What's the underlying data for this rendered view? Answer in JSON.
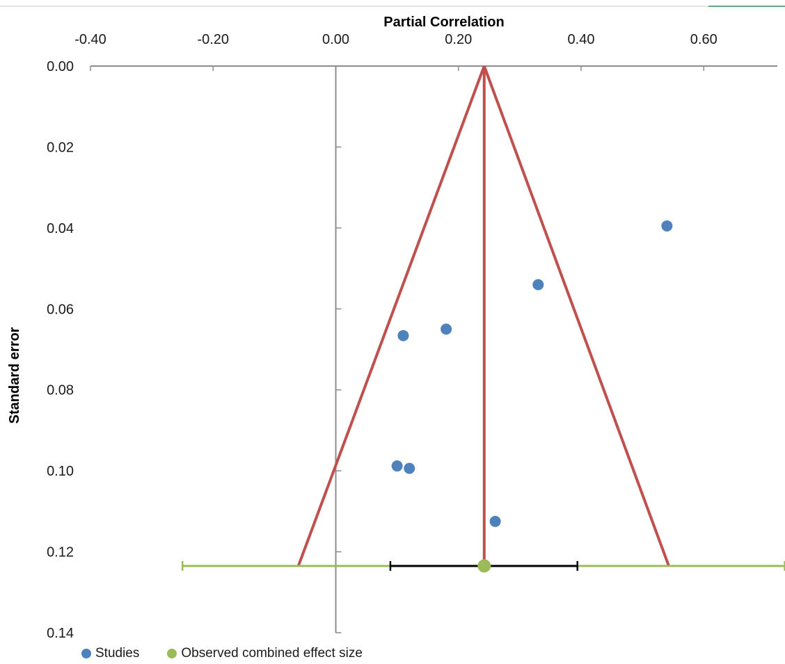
{
  "chart_data": {
    "type": "scatter",
    "title": "",
    "xlabel": "Partial Correlation",
    "ylabel": "Standard error",
    "xlim": [
      -0.4,
      0.72
    ],
    "ylim": [
      0.0,
      0.14
    ],
    "y_inverted": true,
    "x_axis_position": "top",
    "x_ticks": [
      "-0.40",
      "-0.20",
      "0.00",
      "0.20",
      "0.40",
      "0.60"
    ],
    "x_tick_values": [
      -0.4,
      -0.2,
      0.0,
      0.2,
      0.4,
      0.6
    ],
    "y_ticks": [
      "0.00",
      "0.02",
      "0.04",
      "0.06",
      "0.08",
      "0.10",
      "0.12",
      "0.14"
    ],
    "y_tick_values": [
      0.0,
      0.02,
      0.04,
      0.06,
      0.08,
      0.1,
      0.12,
      0.14
    ],
    "grid": false,
    "legend_position": "bottom-left",
    "series": [
      {
        "name": "Studies",
        "color": "#4f81bd",
        "points": [
          {
            "x": 0.54,
            "y": 0.0395
          },
          {
            "x": 0.33,
            "y": 0.054
          },
          {
            "x": 0.18,
            "y": 0.065
          },
          {
            "x": 0.11,
            "y": 0.0666
          },
          {
            "x": 0.1,
            "y": 0.0988
          },
          {
            "x": 0.12,
            "y": 0.0994
          },
          {
            "x": 0.26,
            "y": 0.1125
          }
        ]
      },
      {
        "name": "Observed combined effect size",
        "color": "#9bbb59",
        "points": [
          {
            "x": 0.242,
            "y": 0.1235
          }
        ]
      }
    ],
    "funnel": {
      "color": "#c0504d",
      "apex": {
        "x": 0.242,
        "y": 0.0
      },
      "base_y": 0.1235,
      "base_left_x": -0.061,
      "base_right_x": 0.543
    },
    "confidence_interval": {
      "color": "#000000",
      "low": 0.089,
      "high": 0.394,
      "y": 0.1235
    },
    "prediction_interval": {
      "color": "#9bbb59",
      "low": -0.25,
      "high": 0.732,
      "y": 0.1235
    }
  },
  "legend": {
    "items": [
      {
        "label": "Studies",
        "color": "#4f81bd"
      },
      {
        "label": "Observed combined effect size",
        "color": "#9bbb59"
      }
    ]
  }
}
